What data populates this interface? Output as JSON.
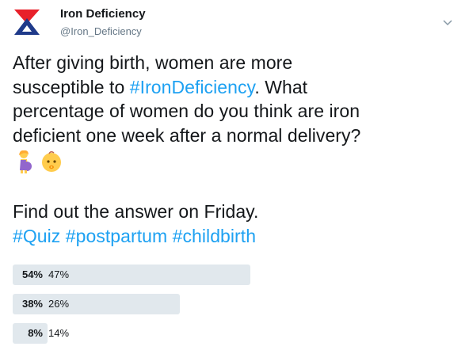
{
  "account": {
    "name": "Iron Deficiency",
    "handle": "@Iron_Deficiency",
    "avatar_icon": "iron-deficiency-logo",
    "menu_icon": "chevron-down-icon"
  },
  "tweet": {
    "line1": "After giving birth, women are more",
    "line2_prefix": "susceptible to ",
    "line2_hashtag": "#IronDeficiency",
    "line2_suffix": ". What",
    "line3": "percentage of women do you think are iron",
    "line4": "deficient one week after a normal delivery?",
    "emojis": [
      "pregnant-woman-emoji",
      "baby-emoji"
    ],
    "line5": "Find out the answer on Friday.",
    "hashtags": [
      "#Quiz",
      "#postpartum",
      "#childbirth"
    ]
  },
  "poll": {
    "options": [
      {
        "percent_label": "54%",
        "label": "47%",
        "fraction": 0.54
      },
      {
        "percent_label": "38%",
        "label": "26%",
        "fraction": 0.38
      },
      {
        "percent_label": "8%",
        "label": "14%",
        "fraction": 0.08
      }
    ]
  },
  "colors": {
    "hashtag": "#1da1f2",
    "poll_bar": "#e1e8ed",
    "logo_red": "#e8202a",
    "logo_blue": "#1f3a8a"
  }
}
